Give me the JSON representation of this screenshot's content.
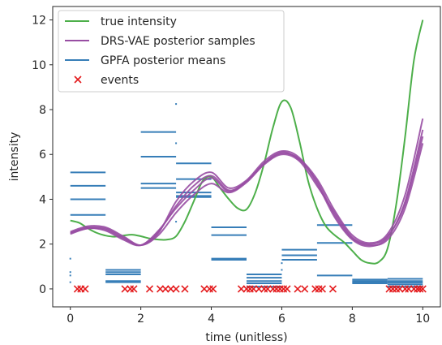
{
  "chart_data": {
    "type": "line",
    "xlabel": "time (unitless)",
    "ylabel": "intensity",
    "xlim": [
      -0.5,
      10.5
    ],
    "ylim": [
      -0.8,
      12.6
    ],
    "xticks": [
      0,
      2,
      4,
      6,
      8,
      10
    ],
    "yticks": [
      0,
      2,
      4,
      6,
      8,
      10,
      12
    ],
    "grid": false,
    "legend_position": "top-left",
    "legend": [
      {
        "label": "true intensity",
        "color": "#4daf4a",
        "kind": "line"
      },
      {
        "label": "DRS-VAE posterior samples",
        "color": "#984ea3",
        "kind": "line"
      },
      {
        "label": "GPFA posterior means",
        "color": "#377eb8",
        "kind": "line"
      },
      {
        "label": "events",
        "color": "#e41a1c",
        "kind": "marker"
      }
    ],
    "true_intensity": {
      "x": [
        0,
        0.25,
        0.5,
        0.75,
        1.0,
        1.25,
        1.5,
        1.75,
        2.0,
        2.25,
        2.5,
        2.75,
        3.0,
        3.25,
        3.5,
        3.75,
        4.0,
        4.25,
        4.5,
        4.75,
        5.0,
        5.25,
        5.5,
        5.75,
        6.0,
        6.25,
        6.5,
        6.75,
        7.0,
        7.25,
        7.5,
        7.75,
        8.0,
        8.25,
        8.5,
        8.75,
        9.0,
        9.25,
        9.5,
        9.75,
        10.0
      ],
      "y": [
        3.05,
        2.95,
        2.7,
        2.5,
        2.38,
        2.33,
        2.38,
        2.42,
        2.35,
        2.25,
        2.2,
        2.2,
        2.35,
        3.0,
        3.9,
        4.8,
        5.0,
        4.5,
        4.0,
        3.6,
        3.55,
        4.3,
        5.6,
        7.2,
        8.35,
        8.1,
        6.6,
        4.8,
        3.6,
        2.8,
        2.4,
        2.1,
        1.7,
        1.3,
        1.15,
        1.2,
        1.8,
        3.8,
        6.8,
        10.2,
        12.0
      ]
    },
    "drs_vae_samples": [
      {
        "x": [
          0,
          0.5,
          1.0,
          1.5,
          2.0,
          2.5,
          3.0,
          3.5,
          4.0,
          4.5,
          5.0,
          5.5,
          6.0,
          6.5,
          7.0,
          7.5,
          8.0,
          8.5,
          9.0,
          9.5,
          10.0
        ],
        "y": [
          2.45,
          2.7,
          2.6,
          2.2,
          1.95,
          2.6,
          3.6,
          4.4,
          4.95,
          4.35,
          4.8,
          5.6,
          6.05,
          5.8,
          4.9,
          3.5,
          2.4,
          2.05,
          2.45,
          4.2,
          7.6
        ]
      },
      {
        "x": [
          0,
          0.5,
          1.0,
          1.5,
          2.0,
          2.5,
          3.0,
          3.5,
          4.0,
          4.5,
          5.0,
          5.5,
          6.0,
          6.5,
          7.0,
          7.5,
          8.0,
          8.5,
          9.0,
          9.5,
          10.0
        ],
        "y": [
          2.5,
          2.75,
          2.7,
          2.3,
          1.95,
          2.5,
          3.9,
          4.8,
          5.2,
          4.5,
          4.85,
          5.7,
          6.15,
          5.85,
          4.7,
          3.2,
          2.2,
          1.9,
          2.3,
          3.9,
          7.1
        ]
      },
      {
        "x": [
          0,
          0.5,
          1.0,
          1.5,
          2.0,
          2.5,
          3.0,
          3.5,
          4.0,
          4.5,
          5.0,
          5.5,
          6.0,
          6.5,
          7.0,
          7.5,
          8.0,
          8.5,
          9.0,
          9.5,
          10.0
        ],
        "y": [
          2.55,
          2.8,
          2.75,
          2.35,
          1.95,
          2.4,
          3.4,
          4.2,
          4.7,
          4.3,
          4.75,
          5.55,
          6.0,
          5.7,
          4.6,
          3.4,
          2.3,
          2.0,
          2.35,
          3.8,
          6.8
        ]
      },
      {
        "x": [
          0,
          0.5,
          1.0,
          1.5,
          2.0,
          2.5,
          3.0,
          3.5,
          4.0,
          4.5,
          5.0,
          5.5,
          6.0,
          6.5,
          7.0,
          7.5,
          8.0,
          8.5,
          9.0,
          9.5,
          10.0
        ],
        "y": [
          2.5,
          2.7,
          2.65,
          2.25,
          1.95,
          2.55,
          3.7,
          4.6,
          5.05,
          4.4,
          4.8,
          5.6,
          6.1,
          5.75,
          4.8,
          3.3,
          2.25,
          1.95,
          2.2,
          3.6,
          6.5
        ]
      }
    ],
    "gpfa_posterior_means": [
      {
        "x0": 0,
        "x1": 1,
        "y": [
          5.2,
          4.6,
          4.0,
          3.3
        ]
      },
      {
        "x0": 1,
        "x1": 2,
        "y": [
          0.85,
          0.75,
          0.65,
          0.35,
          0.3
        ]
      },
      {
        "x0": 2,
        "x1": 3,
        "y": [
          7.0,
          5.9,
          4.7,
          4.5
        ]
      },
      {
        "x0": 3,
        "x1": 4,
        "y": [
          5.6,
          4.9,
          4.3,
          4.15,
          4.1
        ]
      },
      {
        "x0": 4,
        "x1": 5,
        "y": [
          2.75,
          2.4,
          1.35,
          1.3
        ]
      },
      {
        "x0": 5,
        "x1": 6,
        "y": [
          0.65,
          0.5,
          0.35,
          0.25,
          0.1
        ]
      },
      {
        "x0": 6,
        "x1": 7,
        "y": [
          1.75,
          1.5,
          1.3
        ]
      },
      {
        "x0": 7,
        "x1": 8,
        "y": [
          2.85,
          2.05,
          0.6
        ]
      },
      {
        "x0": 8,
        "x1": 9,
        "y": [
          0.42,
          0.35,
          0.3,
          0.25
        ]
      },
      {
        "x0": 9,
        "x1": 10,
        "y": [
          0.45,
          0.35,
          0.28,
          0.2,
          0.1
        ]
      }
    ],
    "gpfa_ticks_at_boundaries": [
      {
        "x": 0,
        "y": [
          1.35,
          0.75,
          0.6,
          0.3
        ]
      },
      {
        "x": 3,
        "y": [
          8.25,
          6.5,
          3.0
        ]
      },
      {
        "x": 6,
        "y": [
          1.15,
          0.85
        ]
      }
    ],
    "events": [
      0.2,
      0.3,
      0.42,
      1.55,
      1.7,
      1.8,
      2.25,
      2.55,
      2.7,
      2.85,
      3.0,
      3.25,
      3.8,
      3.95,
      4.05,
      4.85,
      5.0,
      5.1,
      5.2,
      5.35,
      5.5,
      5.6,
      5.75,
      5.85,
      5.95,
      6.05,
      6.15,
      6.45,
      6.65,
      6.95,
      7.05,
      7.15,
      7.45,
      9.05,
      9.15,
      9.25,
      9.35,
      9.5,
      9.6,
      9.75,
      9.85,
      9.92,
      10.0
    ]
  }
}
